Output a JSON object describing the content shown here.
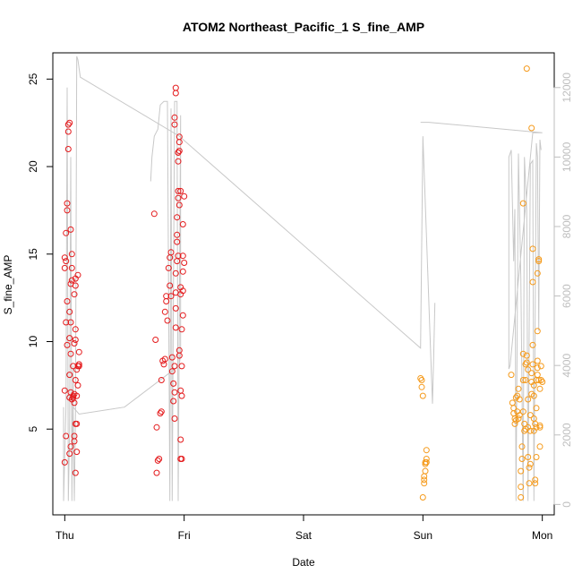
{
  "chart_data": {
    "type": "scatter",
    "title": "ATOM2 Northeast_Pacific_1 S_fine_AMP",
    "xlabel": "Date",
    "ylabel": "S_fine_AMP",
    "x_unit": "days since Thu",
    "xlim": [
      -0.1,
      4.1
    ],
    "ylim": [
      0.1,
      26.5
    ],
    "y2lim": [
      -300,
      13000
    ],
    "x_ticks": [
      {
        "value": 0,
        "label": "Thu"
      },
      {
        "value": 1,
        "label": "Fri"
      },
      {
        "value": 2,
        "label": "Sat"
      },
      {
        "value": 3,
        "label": "Sun"
      },
      {
        "value": 4,
        "label": "Mon"
      }
    ],
    "y_ticks": [
      5,
      10,
      15,
      20,
      25
    ],
    "y2_ticks": [
      0,
      2000,
      4000,
      6000,
      8000,
      10000,
      12000
    ],
    "colors": {
      "series_red": "#e41a1c",
      "series_orange": "#f59a1b",
      "secondary_line": "#c8c8c8"
    },
    "series": [
      {
        "name": "S_fine_AMP (red)",
        "color": "#e41a1c",
        "points": [
          [
            0.0,
            3.1
          ],
          [
            0.01,
            4.6
          ],
          [
            0.0,
            7.2
          ],
          [
            0.02,
            9.8
          ],
          [
            0.01,
            11.1
          ],
          [
            0.02,
            12.3
          ],
          [
            0.0,
            14.2
          ],
          [
            0.01,
            14.6
          ],
          [
            0.0,
            14.8
          ],
          [
            0.01,
            16.2
          ],
          [
            0.02,
            17.9
          ],
          [
            0.02,
            17.5
          ],
          [
            0.03,
            21.0
          ],
          [
            0.03,
            22.0
          ],
          [
            0.03,
            22.4
          ],
          [
            0.04,
            22.5
          ],
          [
            0.04,
            3.6
          ],
          [
            0.05,
            4.0
          ],
          [
            0.04,
            6.8
          ],
          [
            0.05,
            7.1
          ],
          [
            0.04,
            8.1
          ],
          [
            0.05,
            9.3
          ],
          [
            0.04,
            10.2
          ],
          [
            0.05,
            11.1
          ],
          [
            0.04,
            11.7
          ],
          [
            0.05,
            13.3
          ],
          [
            0.06,
            13.5
          ],
          [
            0.06,
            14.2
          ],
          [
            0.05,
            16.4
          ],
          [
            0.06,
            15.0
          ],
          [
            0.06,
            6.7
          ],
          [
            0.07,
            6.8
          ],
          [
            0.07,
            6.9
          ],
          [
            0.08,
            6.5
          ],
          [
            0.08,
            7.0
          ],
          [
            0.07,
            8.6
          ],
          [
            0.08,
            9.9
          ],
          [
            0.09,
            10.1
          ],
          [
            0.09,
            10.7
          ],
          [
            0.08,
            12.7
          ],
          [
            0.09,
            13.6
          ],
          [
            0.09,
            13.2
          ],
          [
            0.08,
            4.3
          ],
          [
            0.08,
            4.6
          ],
          [
            0.09,
            5.3
          ],
          [
            0.1,
            5.3
          ],
          [
            0.1,
            3.7
          ],
          [
            0.09,
            2.5
          ],
          [
            0.1,
            6.9
          ],
          [
            0.11,
            7.5
          ],
          [
            0.1,
            8.4
          ],
          [
            0.11,
            8.6
          ],
          [
            0.12,
            8.7
          ],
          [
            0.12,
            8.6
          ],
          [
            0.12,
            9.4
          ],
          [
            0.11,
            13.8
          ],
          [
            0.09,
            7.8
          ],
          [
            0.75,
            17.3
          ],
          [
            0.76,
            10.1
          ],
          [
            0.77,
            5.1
          ],
          [
            0.77,
            2.5
          ],
          [
            0.78,
            3.2
          ],
          [
            0.79,
            3.3
          ],
          [
            0.8,
            5.9
          ],
          [
            0.81,
            6.0
          ],
          [
            0.81,
            7.8
          ],
          [
            0.82,
            8.9
          ],
          [
            0.83,
            8.7
          ],
          [
            0.84,
            9.0
          ],
          [
            0.84,
            11.7
          ],
          [
            0.85,
            12.3
          ],
          [
            0.85,
            12.6
          ],
          [
            0.86,
            11.2
          ],
          [
            0.87,
            14.2
          ],
          [
            0.88,
            13.2
          ],
          [
            0.88,
            14.8
          ],
          [
            0.89,
            12.6
          ],
          [
            0.89,
            15.1
          ],
          [
            0.9,
            9.1
          ],
          [
            0.9,
            8.3
          ],
          [
            0.91,
            7.6
          ],
          [
            0.91,
            6.6
          ],
          [
            0.92,
            5.6
          ],
          [
            0.92,
            7.1
          ],
          [
            0.92,
            8.6
          ],
          [
            0.93,
            10.8
          ],
          [
            0.93,
            12.8
          ],
          [
            0.93,
            11.9
          ],
          [
            0.93,
            13.9
          ],
          [
            0.94,
            15.7
          ],
          [
            0.94,
            17.1
          ],
          [
            0.94,
            14.6
          ],
          [
            0.94,
            16.1
          ],
          [
            0.95,
            18.6
          ],
          [
            0.95,
            18.2
          ],
          [
            0.95,
            20.3
          ],
          [
            0.95,
            20.8
          ],
          [
            0.96,
            21.4
          ],
          [
            0.96,
            21.7
          ],
          [
            0.96,
            20.9
          ],
          [
            0.96,
            9.2
          ],
          [
            0.97,
            7.2
          ],
          [
            0.97,
            4.4
          ],
          [
            0.97,
            3.3
          ],
          [
            0.98,
            3.3
          ],
          [
            0.98,
            6.9
          ],
          [
            0.98,
            8.6
          ],
          [
            0.98,
            10.7
          ],
          [
            0.99,
            11.5
          ],
          [
            0.99,
            12.9
          ],
          [
            0.99,
            14.0
          ],
          [
            1.0,
            14.5
          ],
          [
            0.99,
            14.9
          ],
          [
            0.99,
            16.7
          ],
          [
            1.0,
            18.3
          ],
          [
            0.97,
            18.6
          ],
          [
            0.92,
            22.4
          ],
          [
            0.92,
            22.8
          ],
          [
            0.93,
            24.2
          ],
          [
            0.93,
            24.5
          ],
          [
            0.95,
            20.8
          ],
          [
            0.96,
            17.8
          ],
          [
            0.95,
            14.9
          ],
          [
            0.97,
            13.1
          ],
          [
            0.97,
            12.7
          ],
          [
            0.96,
            9.5
          ]
        ]
      },
      {
        "name": "S_fine_AMP (orange)",
        "color": "#f59a1b",
        "points": [
          [
            2.98,
            7.9
          ],
          [
            2.99,
            7.8
          ],
          [
            2.99,
            7.4
          ],
          [
            3.0,
            6.9
          ],
          [
            3.0,
            1.1
          ],
          [
            3.01,
            1.9
          ],
          [
            3.01,
            2.1
          ],
          [
            3.01,
            2.3
          ],
          [
            3.02,
            2.6
          ],
          [
            3.02,
            3.0
          ],
          [
            3.02,
            3.1
          ],
          [
            3.03,
            3.3
          ],
          [
            3.03,
            3.1
          ],
          [
            3.03,
            3.8
          ],
          [
            3.74,
            8.1
          ],
          [
            3.75,
            6.5
          ],
          [
            3.76,
            6.2
          ],
          [
            3.76,
            5.9
          ],
          [
            3.77,
            5.6
          ],
          [
            3.77,
            5.3
          ],
          [
            3.78,
            5.5
          ],
          [
            3.78,
            6.8
          ],
          [
            3.79,
            6.9
          ],
          [
            3.79,
            6.0
          ],
          [
            3.8,
            7.3
          ],
          [
            3.8,
            5.6
          ],
          [
            3.81,
            6.7
          ],
          [
            3.81,
            5.8
          ],
          [
            3.82,
            2.6
          ],
          [
            3.82,
            1.7
          ],
          [
            3.82,
            1.1
          ],
          [
            3.83,
            4.0
          ],
          [
            3.83,
            3.3
          ],
          [
            3.84,
            9.3
          ],
          [
            3.84,
            7.8
          ],
          [
            3.84,
            6.0
          ],
          [
            3.84,
            17.9
          ],
          [
            3.85,
            5.3
          ],
          [
            3.85,
            4.9
          ],
          [
            3.86,
            5.0
          ],
          [
            3.86,
            7.8
          ],
          [
            3.86,
            8.7
          ],
          [
            3.87,
            9.2
          ],
          [
            3.87,
            25.6
          ],
          [
            3.87,
            8.8
          ],
          [
            3.88,
            8.4
          ],
          [
            3.88,
            6.7
          ],
          [
            3.88,
            5.1
          ],
          [
            3.88,
            3.4
          ],
          [
            3.89,
            1.9
          ],
          [
            3.89,
            2.8
          ],
          [
            3.9,
            3.0
          ],
          [
            3.9,
            4.9
          ],
          [
            3.9,
            5.8
          ],
          [
            3.91,
            7.0
          ],
          [
            3.91,
            8.2
          ],
          [
            3.91,
            7.7
          ],
          [
            3.91,
            22.2
          ],
          [
            3.92,
            15.3
          ],
          [
            3.92,
            13.4
          ],
          [
            3.92,
            9.8
          ],
          [
            3.92,
            8.7
          ],
          [
            3.93,
            7.5
          ],
          [
            3.93,
            6.9
          ],
          [
            3.93,
            5.6
          ],
          [
            3.93,
            4.9
          ],
          [
            3.94,
            5.3
          ],
          [
            3.94,
            2.1
          ],
          [
            3.94,
            1.9
          ],
          [
            3.95,
            3.4
          ],
          [
            3.95,
            5.1
          ],
          [
            3.95,
            6.2
          ],
          [
            3.95,
            7.8
          ],
          [
            3.96,
            8.1
          ],
          [
            3.96,
            8.5
          ],
          [
            3.96,
            8.9
          ],
          [
            3.96,
            10.6
          ],
          [
            3.96,
            13.9
          ],
          [
            3.97,
            14.6
          ],
          [
            3.97,
            14.7
          ],
          [
            3.97,
            7.8
          ],
          [
            3.98,
            7.3
          ],
          [
            3.98,
            5.2
          ],
          [
            3.98,
            5.1
          ],
          [
            3.99,
            8.6
          ],
          [
            3.99,
            7.8
          ],
          [
            4.0,
            7.7
          ],
          [
            3.98,
            4.0
          ]
        ]
      }
    ],
    "secondary_series": {
      "name": "secondary line (right axis)",
      "color": "#c8c8c8",
      "segments": [
        [
          [
            -0.01,
            2800
          ],
          [
            -0.01,
            100
          ],
          [
            0.01,
            2800
          ],
          [
            0.02,
            12000
          ],
          [
            0.03,
            100
          ],
          [
            0.04,
            2000
          ],
          [
            0.05,
            10000
          ],
          [
            0.06,
            100
          ],
          [
            0.07,
            4000
          ],
          [
            0.07,
            2700
          ],
          [
            0.08,
            100
          ],
          [
            0.09,
            2600
          ],
          [
            0.1,
            12900
          ],
          [
            0.11,
            12800
          ],
          [
            0.13,
            12300
          ],
          [
            0.96,
            10600
          ],
          [
            2.98,
            4500
          ],
          [
            3.0,
            10600
          ],
          [
            3.08,
            2900
          ],
          [
            3.09,
            4200
          ],
          [
            3.1,
            5800
          ]
        ],
        [
          [
            0.72,
            9300
          ],
          [
            0.73,
            10000
          ],
          [
            0.75,
            10600
          ],
          [
            0.78,
            10800
          ],
          [
            0.8,
            11500
          ],
          [
            0.83,
            11600
          ],
          [
            0.86,
            11600
          ],
          [
            0.88,
            100
          ],
          [
            0.89,
            11400
          ],
          [
            0.9,
            100
          ],
          [
            0.92,
            11600
          ],
          [
            0.94,
            11600
          ],
          [
            0.95,
            100
          ],
          [
            0.97,
            11200
          ],
          [
            0.97,
            4400
          ],
          [
            0.96,
            4000
          ],
          [
            0.5,
            2800
          ],
          [
            0.12,
            2600
          ],
          [
            0.07,
            2800
          ]
        ],
        [
          [
            2.98,
            11000
          ],
          [
            3.05,
            11000
          ],
          [
            4.0,
            10700
          ],
          [
            3.92,
            10700
          ],
          [
            3.73,
            4000
          ],
          [
            3.72,
            3900
          ],
          [
            3.72,
            10000
          ],
          [
            3.74,
            10200
          ],
          [
            3.76,
            7000
          ],
          [
            3.77,
            8500
          ],
          [
            3.78,
            100
          ],
          [
            3.8,
            10100
          ],
          [
            3.82,
            6500
          ],
          [
            3.84,
            100
          ],
          [
            3.85,
            10000
          ],
          [
            3.87,
            8500
          ],
          [
            3.88,
            100
          ],
          [
            3.9,
            9800
          ],
          [
            3.92,
            9900
          ],
          [
            3.93,
            100
          ],
          [
            3.95,
            10400
          ],
          [
            3.96,
            10000
          ],
          [
            3.97,
            5000
          ],
          [
            3.98,
            10500
          ],
          [
            3.99,
            10200
          ]
        ]
      ]
    }
  }
}
